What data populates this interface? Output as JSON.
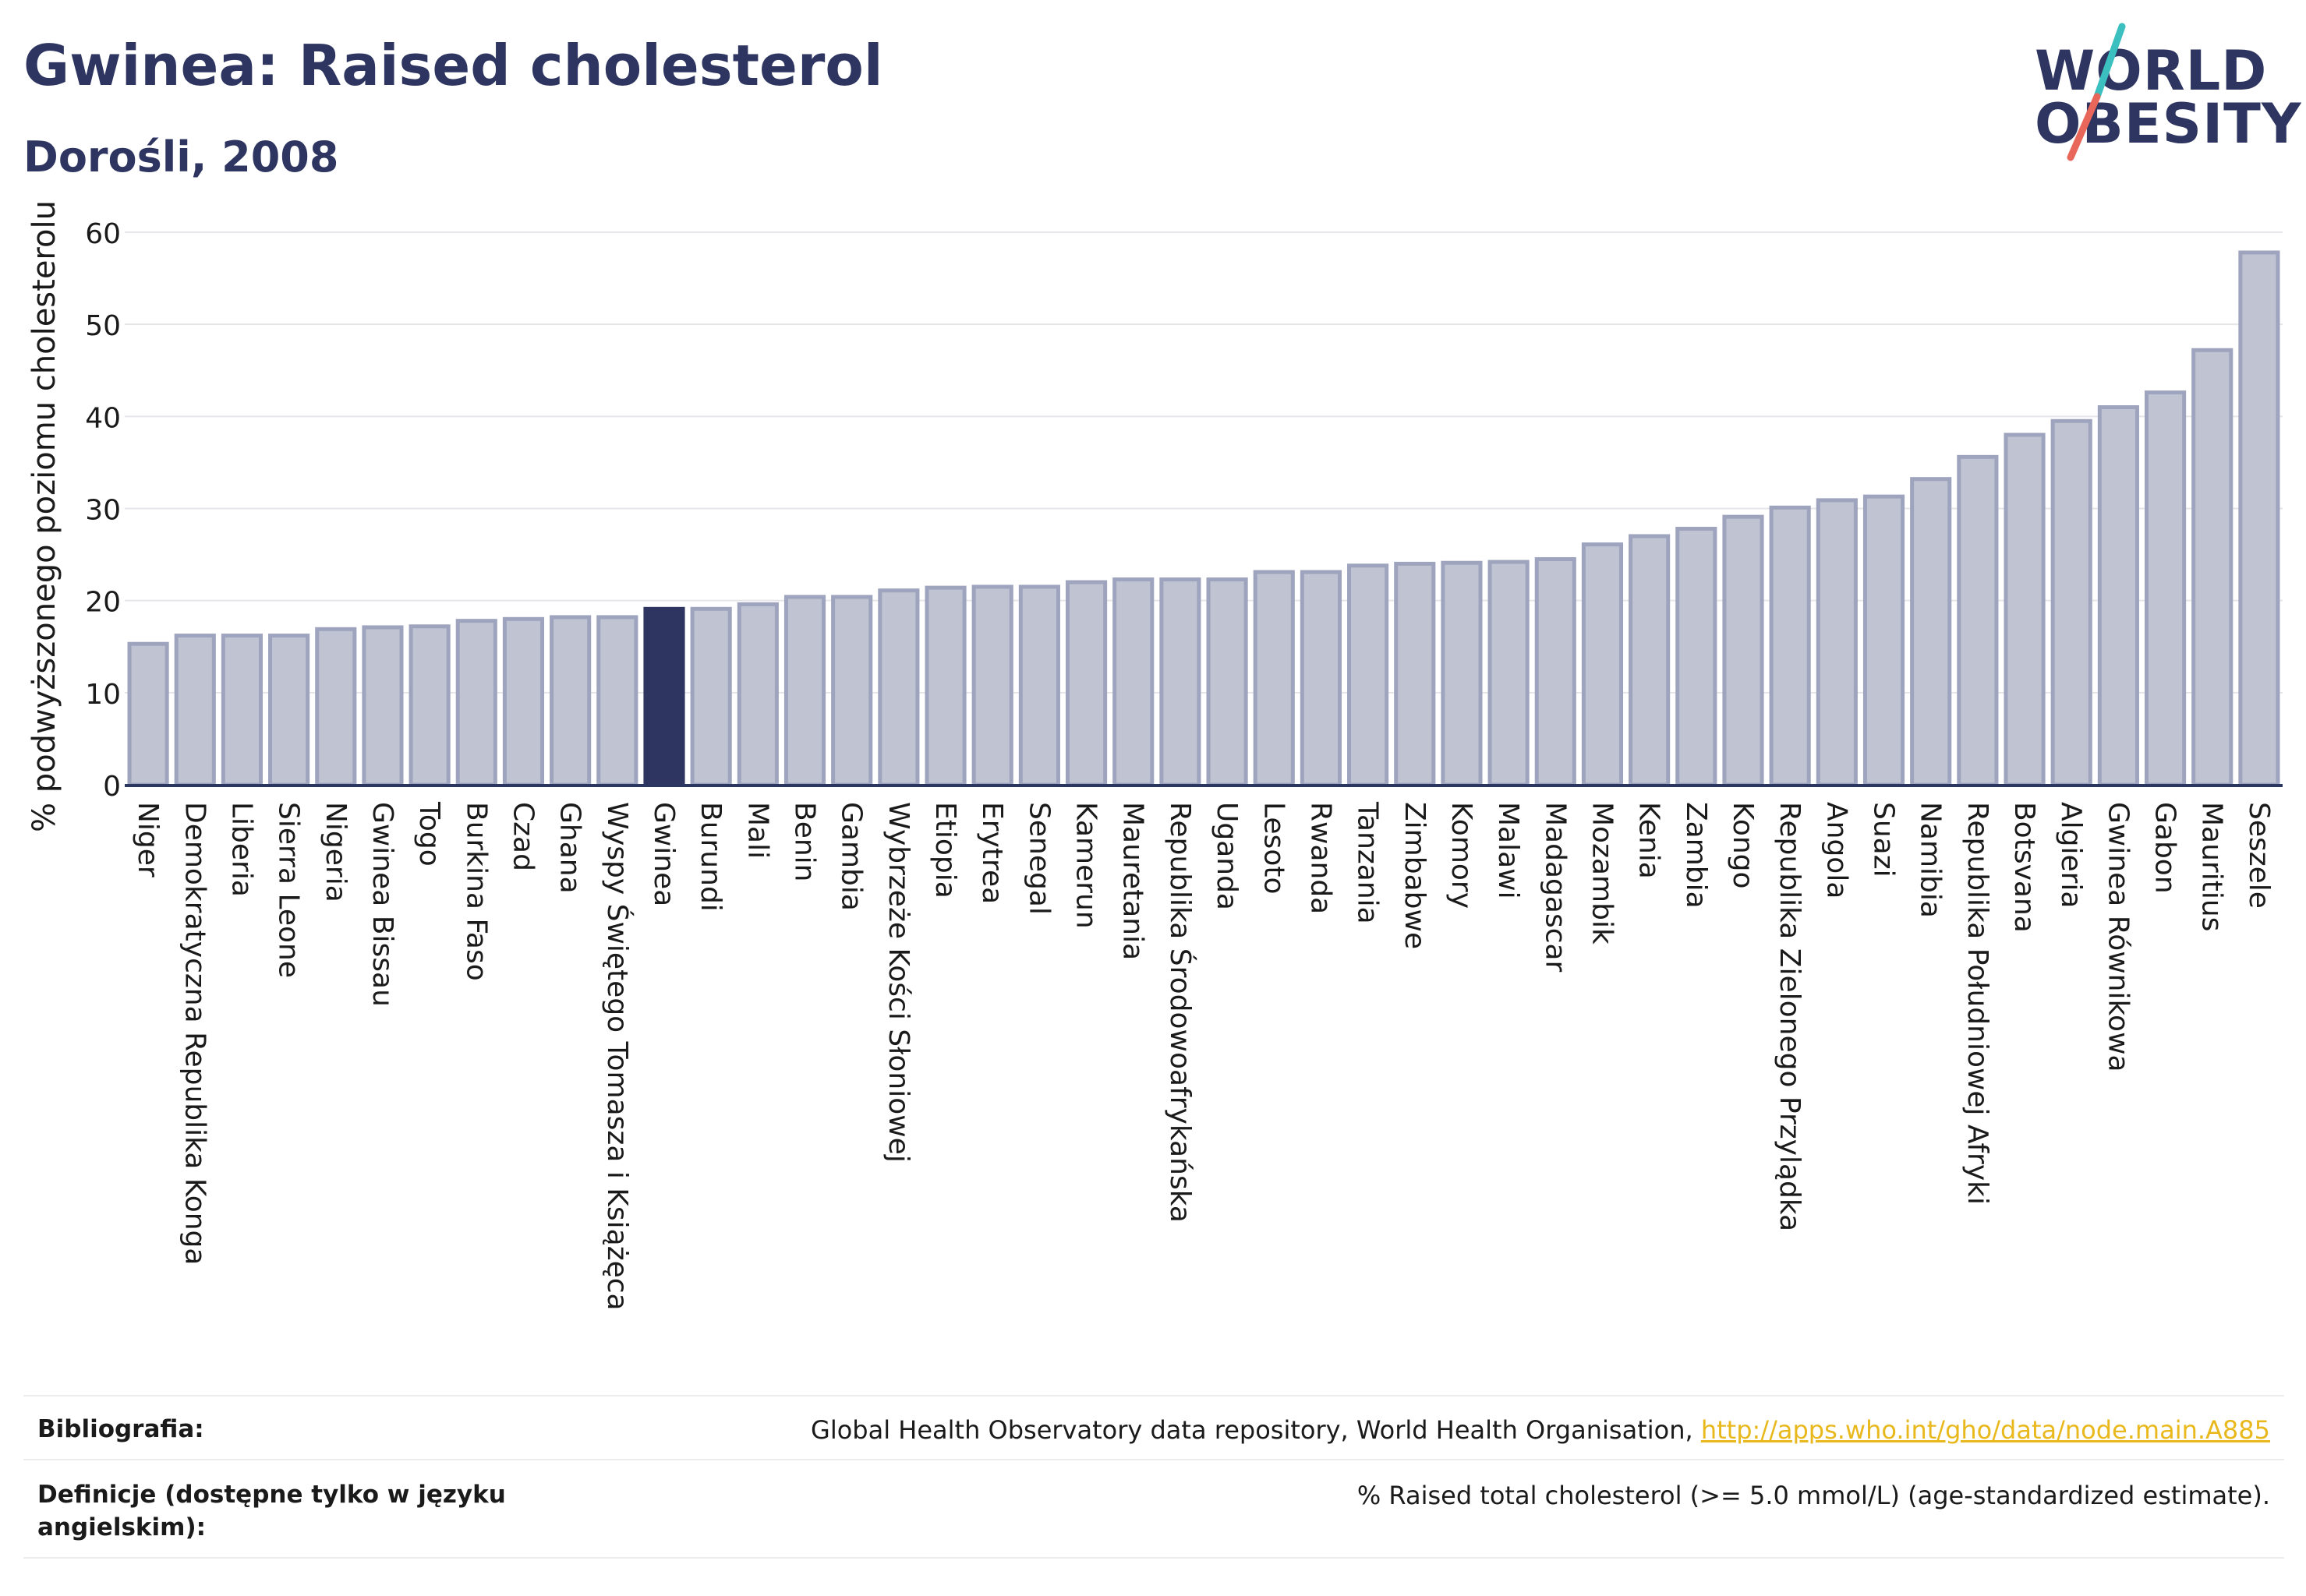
{
  "header": {
    "title": "Gwinea: Raised cholesterol",
    "subtitle": "Dorośli, 2008"
  },
  "logo": {
    "line1": "WORLD",
    "line2": "OBESITY",
    "colors": {
      "text": "#2d3560",
      "slash_top": "#3bbfbf",
      "slash_bottom": "#e8675a"
    }
  },
  "colors": {
    "bar_default": "#bfc3d2",
    "bar_default_stroke": "#9ea4bd",
    "bar_highlight": "#2d3560",
    "axis": "#2b3661",
    "grid": "#e6e6ea"
  },
  "chart_data": {
    "type": "bar",
    "title": "Gwinea: Raised cholesterol",
    "subtitle": "Dorośli, 2008",
    "xlabel": "",
    "ylabel": "% podwyższonego poziomu cholesterolu",
    "ylim": [
      0,
      60
    ],
    "yticks": [
      0,
      10,
      20,
      30,
      40,
      50,
      60
    ],
    "grid": true,
    "highlight": "Gwinea",
    "categories": [
      "Niger",
      "Demokratyczna Republika Konga",
      "Liberia",
      "Sierra Leone",
      "Nigeria",
      "Gwinea Bissau",
      "Togo",
      "Burkina Faso",
      "Czad",
      "Ghana",
      "Wyspy Świętego Tomasza i Książęca",
      "Gwinea",
      "Burundi",
      "Mali",
      "Benin",
      "Gambia",
      "Wybrzeże Kości Słoniowej",
      "Etiopia",
      "Erytrea",
      "Senegal",
      "Kamerun",
      "Mauretania",
      "Republika Środowoafrykańska",
      "Uganda",
      "Lesoto",
      "Rwanda",
      "Tanzania",
      "Zimbabwe",
      "Komory",
      "Malawi",
      "Madagascar",
      "Mozambik",
      "Kenia",
      "Zambia",
      "Kongo",
      "Republika Zielonego Przylądka",
      "Angola",
      "Suazi",
      "Namibia",
      "Republika Południowej Afryki",
      "Botsvana",
      "Algieria",
      "Gwinea Równikowa",
      "Gabon",
      "Mauritius",
      "Seszele"
    ],
    "values": [
      15.3,
      16.2,
      16.2,
      16.2,
      16.9,
      17.1,
      17.2,
      17.8,
      18.0,
      18.2,
      18.2,
      19.1,
      19.1,
      19.6,
      20.4,
      20.4,
      21.1,
      21.4,
      21.5,
      21.5,
      22.0,
      22.3,
      22.3,
      22.3,
      23.1,
      23.1,
      23.8,
      24.0,
      24.1,
      24.2,
      24.5,
      26.1,
      27.0,
      27.8,
      29.1,
      30.1,
      30.9,
      31.3,
      33.2,
      35.6,
      38.0,
      39.5,
      41.0,
      42.6,
      47.2,
      57.8
    ]
  },
  "footer": {
    "bibliography_label": "Bibliografia:",
    "bibliography_text": "Global Health Observatory data repository, World Health Organisation, ",
    "bibliography_link": "http://apps.who.int/gho/data/node.main.A885",
    "definitions_label": "Definicje (dostępne tylko w języku angielskim):",
    "definitions_text": "% Raised total cholesterol (>= 5.0 mmol/L) (age-standardized estimate)."
  }
}
